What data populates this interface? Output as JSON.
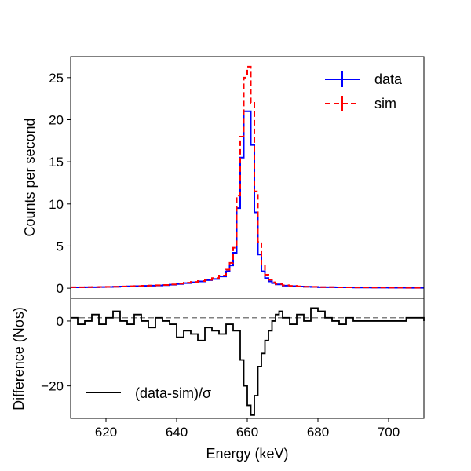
{
  "chart_data": [
    {
      "panel": "top",
      "type": "line",
      "drawstyle": "steps",
      "xlabel": "",
      "ylabel": "Counts per second",
      "xlim": [
        610,
        710
      ],
      "ylim": [
        -1.2,
        27.5
      ],
      "yticks": [
        0,
        5,
        10,
        15,
        20,
        25
      ],
      "legend_position": "top-right",
      "x": [
        610,
        612,
        614,
        616,
        618,
        620,
        622,
        624,
        626,
        628,
        630,
        632,
        634,
        636,
        638,
        640,
        642,
        644,
        646,
        648,
        650,
        652,
        654,
        655,
        656,
        657,
        658,
        659,
        660,
        661,
        662,
        663,
        664,
        665,
        666,
        667,
        668,
        670,
        672,
        674,
        676,
        678,
        680,
        685,
        690,
        695,
        700,
        705,
        710
      ],
      "series": [
        {
          "name": "data",
          "color": "#0000ff",
          "linestyle": "solid",
          "values": [
            0.1,
            0.1,
            0.12,
            0.12,
            0.14,
            0.15,
            0.17,
            0.2,
            0.22,
            0.25,
            0.28,
            0.3,
            0.33,
            0.36,
            0.42,
            0.5,
            0.6,
            0.7,
            0.8,
            0.95,
            1.1,
            1.4,
            2.0,
            2.7,
            4.2,
            9.5,
            15.5,
            21.0,
            21.0,
            17.0,
            9.0,
            4.0,
            2.0,
            1.2,
            0.8,
            0.6,
            0.45,
            0.3,
            0.25,
            0.2,
            0.17,
            0.15,
            0.12,
            0.1,
            0.08,
            0.07,
            0.06,
            0.05,
            0.05
          ]
        },
        {
          "name": "sim",
          "color": "#ff0000",
          "linestyle": "dashed",
          "values": [
            0.12,
            0.12,
            0.13,
            0.14,
            0.15,
            0.16,
            0.18,
            0.21,
            0.23,
            0.26,
            0.29,
            0.32,
            0.35,
            0.38,
            0.45,
            0.55,
            0.65,
            0.75,
            0.85,
            1.0,
            1.2,
            1.5,
            2.2,
            3.0,
            4.8,
            11.0,
            18.0,
            25.0,
            26.3,
            22.0,
            11.5,
            5.5,
            2.8,
            1.6,
            1.0,
            0.7,
            0.5,
            0.35,
            0.28,
            0.22,
            0.18,
            0.16,
            0.13,
            0.11,
            0.09,
            0.08,
            0.07,
            0.06,
            0.06
          ]
        }
      ]
    },
    {
      "panel": "bottom",
      "type": "line",
      "drawstyle": "steps",
      "xlabel": "Energy (keV)",
      "ylabel": "Difference (Nσs)",
      "xlim": [
        610,
        710
      ],
      "ylim": [
        -30,
        7
      ],
      "xticks": [
        620,
        640,
        660,
        680,
        700
      ],
      "yticks": [
        -20,
        0
      ],
      "reference_line": 1,
      "legend_position": "bottom-left",
      "x": [
        610,
        612,
        614,
        616,
        618,
        620,
        622,
        624,
        626,
        628,
        630,
        632,
        634,
        636,
        638,
        640,
        642,
        644,
        646,
        648,
        650,
        652,
        654,
        656,
        658,
        659,
        660,
        661,
        662,
        663,
        664,
        665,
        666,
        667,
        668,
        669,
        670,
        672,
        674,
        676,
        678,
        680,
        682,
        684,
        686,
        688,
        690,
        695,
        700,
        705,
        710
      ],
      "series": [
        {
          "name": "(data-sim)/σ",
          "color": "#000000",
          "linestyle": "solid",
          "values": [
            1,
            -1,
            0,
            2,
            -1,
            1,
            3,
            0,
            -1,
            2,
            0,
            -2,
            1,
            0,
            -1,
            -5,
            -3,
            -4,
            -6,
            -2,
            -3,
            -4,
            -1,
            -3,
            -12,
            -20,
            -26,
            -29,
            -23,
            -14,
            -10,
            -6,
            -3,
            0,
            2,
            3,
            1,
            -1,
            2,
            0,
            4,
            3,
            1,
            0,
            -1,
            1,
            0,
            0,
            0,
            1,
            0
          ]
        }
      ]
    }
  ]
}
